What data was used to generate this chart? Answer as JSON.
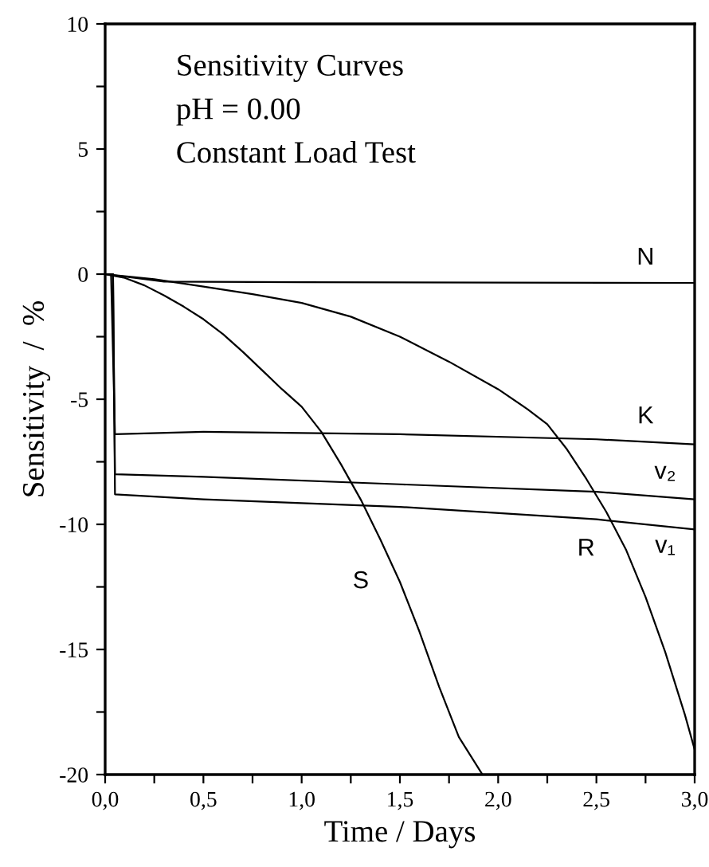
{
  "chart_data": {
    "type": "line",
    "xlabel": "Time / Days",
    "ylabel": "Sensitivity  /  %",
    "annotations": [
      "Sensitivity Curves",
      "pH = 0.00",
      "Constant Load Test"
    ],
    "xlim": [
      0,
      3
    ],
    "ylim": [
      -20,
      10
    ],
    "xticks": [
      {
        "value": 0,
        "label": "0,0"
      },
      {
        "value": 0.25,
        "label": null
      },
      {
        "value": 0.5,
        "label": "0,5"
      },
      {
        "value": 0.75,
        "label": null
      },
      {
        "value": 1,
        "label": "1,0"
      },
      {
        "value": 1.25,
        "label": null
      },
      {
        "value": 1.5,
        "label": "1,5"
      },
      {
        "value": 1.75,
        "label": null
      },
      {
        "value": 2,
        "label": "2,0"
      },
      {
        "value": 2.25,
        "label": null
      },
      {
        "value": 2.5,
        "label": "2,5"
      },
      {
        "value": 2.75,
        "label": null
      },
      {
        "value": 3,
        "label": "3,0"
      }
    ],
    "yticks": [
      -20,
      {
        "value": -17.5,
        "label": null
      },
      -15,
      {
        "value": -12.5,
        "label": null
      },
      -10,
      {
        "value": -7.5,
        "label": null
      },
      -5,
      {
        "value": -2.5,
        "label": null
      },
      0,
      {
        "value": 2.5,
        "label": null
      },
      5,
      {
        "value": 7.5,
        "label": null
      },
      10
    ],
    "grid": false,
    "legend": false,
    "marker": "none",
    "line_style": "solid",
    "series": [
      {
        "name": "N",
        "color": "#000000",
        "x": [
          0,
          0.3,
          1.0,
          2.0,
          3.0
        ],
        "values": [
          0,
          -0.3,
          -0.32,
          -0.34,
          -0.35
        ]
      },
      {
        "name": "K",
        "color": "#000000",
        "x": [
          0,
          0.03,
          0.05,
          0.5,
          1.5,
          2.5,
          3.0
        ],
        "values": [
          0,
          0,
          -6.4,
          -6.3,
          -6.4,
          -6.6,
          -6.8
        ]
      },
      {
        "name": "v₂",
        "color": "#000000",
        "x": [
          0,
          0.04,
          0.05,
          0.5,
          1.5,
          2.5,
          3.0
        ],
        "values": [
          0,
          0,
          -8.0,
          -8.1,
          -8.4,
          -8.7,
          -9.0
        ]
      },
      {
        "name": "v₁",
        "color": "#000000",
        "x": [
          0,
          0.04,
          0.05,
          0.5,
          1.5,
          2.5,
          3.0
        ],
        "values": [
          0,
          0,
          -8.8,
          -9.0,
          -9.3,
          -9.8,
          -10.2
        ]
      },
      {
        "name": "S",
        "color": "#000000",
        "x": [
          0,
          0.1,
          0.2,
          0.3,
          0.4,
          0.5,
          0.6,
          0.7,
          0.8,
          0.9,
          1.0,
          1.1,
          1.2,
          1.3,
          1.4,
          1.5,
          1.6,
          1.7,
          1.8,
          1.92
        ],
        "values": [
          0,
          -0.15,
          -0.45,
          -0.85,
          -1.3,
          -1.8,
          -2.4,
          -3.1,
          -3.85,
          -4.6,
          -5.3,
          -6.3,
          -7.6,
          -9.0,
          -10.6,
          -12.3,
          -14.3,
          -16.5,
          -18.5,
          -20.0
        ]
      },
      {
        "name": "R",
        "color": "#000000",
        "x": [
          0,
          0.25,
          0.5,
          0.75,
          1.0,
          1.25,
          1.5,
          1.75,
          2.0,
          2.15,
          2.25,
          2.35,
          2.45,
          2.55,
          2.65,
          2.75,
          2.85,
          2.95,
          3.0
        ],
        "values": [
          0,
          -0.2,
          -0.5,
          -0.8,
          -1.15,
          -1.7,
          -2.5,
          -3.5,
          -4.6,
          -5.4,
          -6.0,
          -7.0,
          -8.2,
          -9.5,
          -11.0,
          -12.9,
          -15.1,
          -17.6,
          -19.0
        ]
      }
    ]
  }
}
